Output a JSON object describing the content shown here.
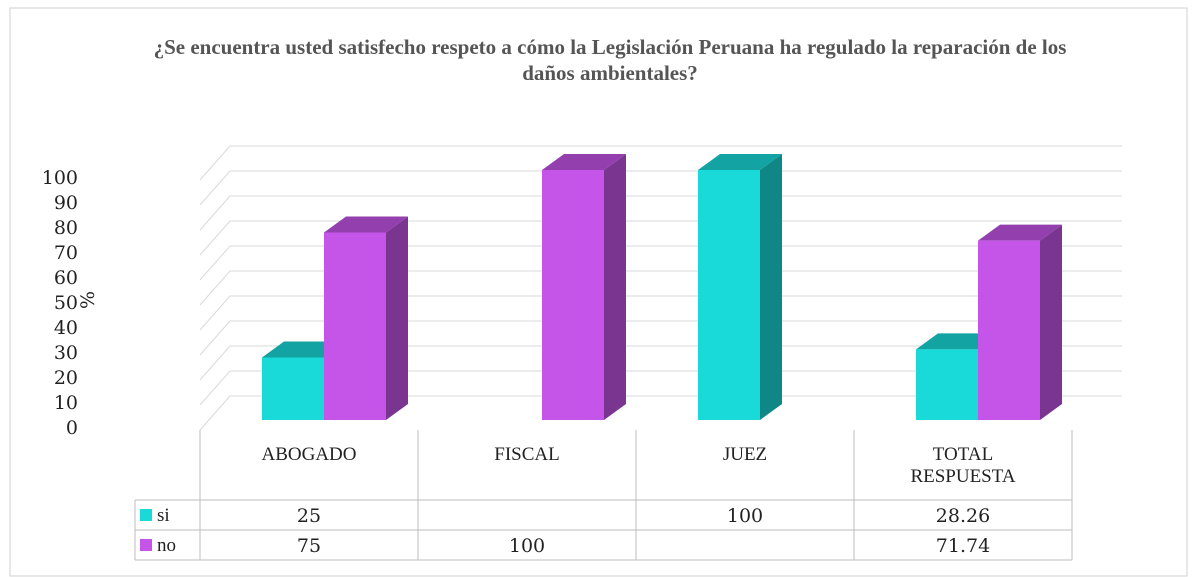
{
  "chart_data": {
    "type": "bar3d",
    "title": "¿Se encuentra usted satisfecho respeto a cómo la Legislación Peruana ha regulado la reparación de los daños ambientales?",
    "ylabel": "%",
    "categories": [
      "ABOGADO",
      "FISCAL",
      "JUEZ",
      "TOTAL RESPUESTA"
    ],
    "series": [
      {
        "name": "si",
        "color": "#19d9d9",
        "values": [
          25,
          null,
          100,
          28.26
        ]
      },
      {
        "name": "no",
        "color": "#c455e8",
        "values": [
          75,
          100,
          null,
          71.74
        ]
      }
    ],
    "ylim": [
      0,
      100
    ],
    "yticks": [
      0,
      10,
      20,
      30,
      40,
      50,
      60,
      70,
      80,
      90,
      100
    ],
    "grid": true
  }
}
